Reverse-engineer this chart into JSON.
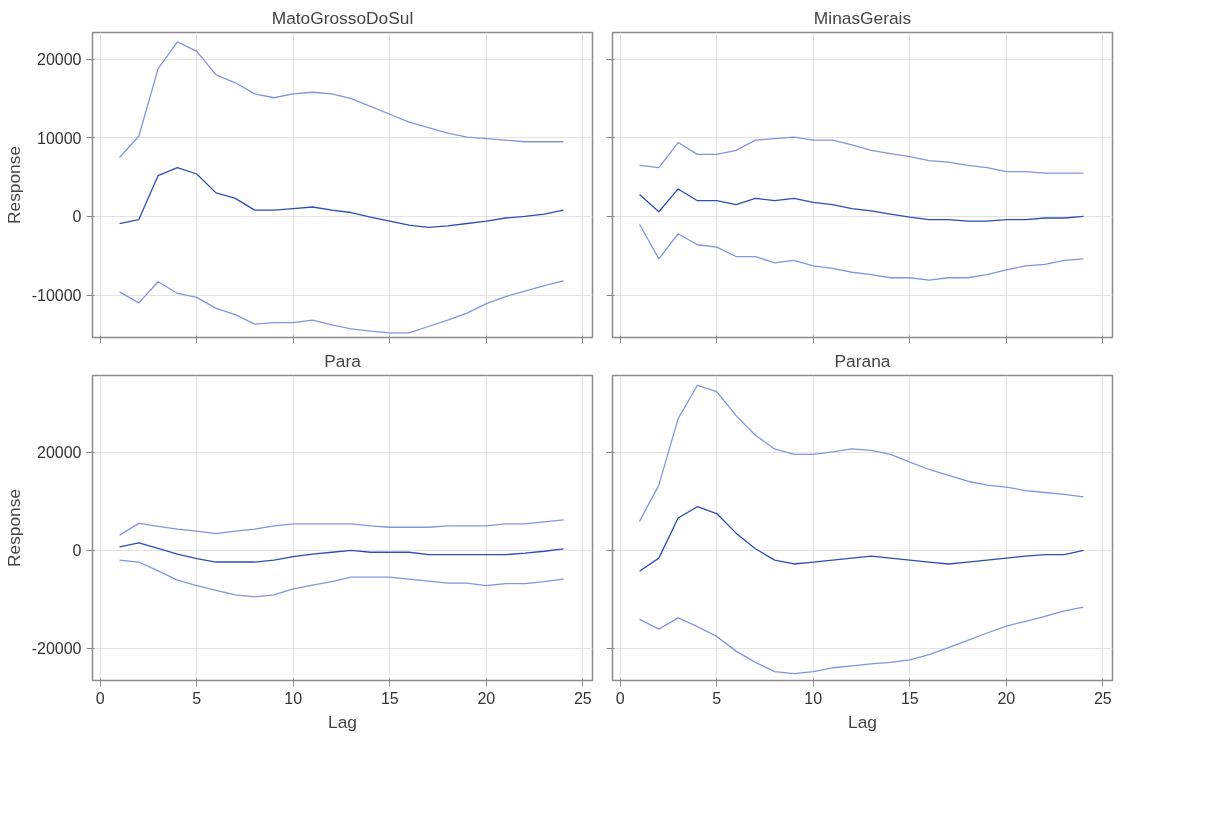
{
  "chart_data": [
    {
      "type": "line",
      "title": "MatoGrossoDoSul",
      "ylabel": "Response",
      "x": [
        1,
        2,
        3,
        4,
        5,
        6,
        7,
        8,
        9,
        10,
        11,
        12,
        13,
        14,
        15,
        16,
        17,
        18,
        19,
        20,
        21,
        22,
        23,
        24
      ],
      "xlim": [
        -0.4,
        25.5
      ],
      "xticks": [
        0,
        5,
        10,
        15,
        20,
        25
      ],
      "ylim": [
        -15400,
        23400
      ],
      "yticks": [
        -10000,
        0,
        10000,
        20000
      ],
      "grid": true,
      "tick_labels": "y",
      "series": [
        {
          "color": "#7f97dc",
          "values": [
            7500,
            10200,
            18800,
            22200,
            21000,
            18000,
            17000,
            15600,
            15100,
            15600,
            15800,
            15600,
            15000,
            14000,
            13000,
            12000,
            11300,
            10600,
            10100,
            9900,
            9700,
            9500,
            9500,
            9500
          ]
        },
        {
          "color": "#2a4fb5",
          "values": [
            -900,
            -400,
            5200,
            6200,
            5400,
            3000,
            2300,
            800,
            800,
            1000,
            1200,
            800,
            500,
            -100,
            -600,
            -1100,
            -1400,
            -1200,
            -900,
            -600,
            -200,
            0,
            300,
            800
          ]
        },
        {
          "color": "#7f97dc",
          "values": [
            -9600,
            -11000,
            -8300,
            -9800,
            -10300,
            -11700,
            -12500,
            -13700,
            -13500,
            -13500,
            -13200,
            -13800,
            -14300,
            -14600,
            -14800,
            -14800,
            -14000,
            -13200,
            -12300,
            -11100,
            -10200,
            -9500,
            -8800,
            -8200
          ]
        }
      ]
    },
    {
      "type": "line",
      "title": "MinasGerais",
      "x": [
        1,
        2,
        3,
        4,
        5,
        6,
        7,
        8,
        9,
        10,
        11,
        12,
        13,
        14,
        15,
        16,
        17,
        18,
        19,
        20,
        21,
        22,
        23,
        24
      ],
      "xlim": [
        -0.4,
        25.5
      ],
      "xticks": [
        0,
        5,
        10,
        15,
        20,
        25
      ],
      "ylim": [
        -15400,
        23400
      ],
      "yticks": [
        -10000,
        0,
        10000,
        20000
      ],
      "grid": true,
      "tick_labels": false,
      "series": [
        {
          "color": "#7f97dc",
          "values": [
            6500,
            6200,
            9400,
            7900,
            7900,
            8400,
            9700,
            9900,
            10100,
            9700,
            9700,
            9100,
            8400,
            8000,
            7600,
            7100,
            6900,
            6500,
            6200,
            5700,
            5700,
            5500,
            5500,
            5500
          ]
        },
        {
          "color": "#2a4fb5",
          "values": [
            2800,
            600,
            3500,
            2000,
            2000,
            1500,
            2300,
            2000,
            2300,
            1800,
            1500,
            1000,
            700,
            300,
            -100,
            -400,
            -400,
            -600,
            -600,
            -400,
            -400,
            -200,
            -200,
            0
          ]
        },
        {
          "color": "#7f97dc",
          "values": [
            -1000,
            -5400,
            -2200,
            -3600,
            -3900,
            -5100,
            -5100,
            -5900,
            -5600,
            -6300,
            -6600,
            -7100,
            -7400,
            -7800,
            -7800,
            -8100,
            -7800,
            -7800,
            -7400,
            -6800,
            -6300,
            -6100,
            -5600,
            -5400
          ]
        }
      ]
    },
    {
      "type": "line",
      "title": "Para",
      "xlabel": "Lag",
      "ylabel": "Response",
      "x": [
        1,
        2,
        3,
        4,
        5,
        6,
        7,
        8,
        9,
        10,
        11,
        12,
        13,
        14,
        15,
        16,
        17,
        18,
        19,
        20,
        21,
        22,
        23,
        24
      ],
      "xlim": [
        -0.4,
        25.5
      ],
      "xticks": [
        0,
        5,
        10,
        15,
        20,
        25
      ],
      "ylim": [
        -26600,
        35700
      ],
      "yticks": [
        -20000,
        0,
        20000
      ],
      "grid": true,
      "series": [
        {
          "color": "#7f97dc",
          "values": [
            3100,
            5500,
            4900,
            4300,
            3900,
            3400,
            3900,
            4300,
            5000,
            5400,
            5400,
            5400,
            5400,
            5000,
            4700,
            4700,
            4700,
            5000,
            5000,
            5000,
            5400,
            5400,
            5800,
            6200
          ]
        },
        {
          "color": "#2a4fb5",
          "values": [
            700,
            1500,
            400,
            -800,
            -1700,
            -2400,
            -2400,
            -2400,
            -2000,
            -1300,
            -800,
            -400,
            0,
            -400,
            -400,
            -400,
            -900,
            -900,
            -900,
            -900,
            -900,
            -600,
            -200,
            300
          ]
        },
        {
          "color": "#7f97dc",
          "values": [
            -2000,
            -2400,
            -4200,
            -6100,
            -7200,
            -8200,
            -9100,
            -9500,
            -9100,
            -7900,
            -7100,
            -6400,
            -5500,
            -5500,
            -5500,
            -5900,
            -6300,
            -6700,
            -6700,
            -7200,
            -6800,
            -6800,
            -6400,
            -5900
          ]
        }
      ]
    },
    {
      "type": "line",
      "title": "Parana",
      "xlabel": "Lag",
      "x": [
        1,
        2,
        3,
        4,
        5,
        6,
        7,
        8,
        9,
        10,
        11,
        12,
        13,
        14,
        15,
        16,
        17,
        18,
        19,
        20,
        21,
        22,
        23,
        24
      ],
      "xlim": [
        -0.4,
        25.5
      ],
      "xticks": [
        0,
        5,
        10,
        15,
        20,
        25
      ],
      "ylim": [
        -26600,
        35700
      ],
      "yticks": [
        -20000,
        0,
        20000
      ],
      "grid": true,
      "tick_labels": "x",
      "series": [
        {
          "color": "#7f97dc",
          "values": [
            5900,
            13300,
            26900,
            33700,
            32400,
            27500,
            23500,
            20700,
            19600,
            19600,
            20100,
            20700,
            20400,
            19600,
            18000,
            16500,
            15300,
            14100,
            13300,
            12900,
            12200,
            11800,
            11400,
            10900
          ]
        },
        {
          "color": "#2a4fb5",
          "values": [
            -4300,
            -1600,
            6600,
            8900,
            7500,
            3500,
            300,
            -2000,
            -2800,
            -2400,
            -2000,
            -1600,
            -1200,
            -1600,
            -2000,
            -2400,
            -2800,
            -2400,
            -2000,
            -1600,
            -1200,
            -900,
            -900,
            0
          ]
        },
        {
          "color": "#7f97dc",
          "values": [
            -14100,
            -16100,
            -13800,
            -15600,
            -17600,
            -20600,
            -22900,
            -24800,
            -25200,
            -24800,
            -24000,
            -23600,
            -23200,
            -22900,
            -22400,
            -21300,
            -19900,
            -18400,
            -16900,
            -15500,
            -14500,
            -13500,
            -12400,
            -11600
          ]
        }
      ]
    }
  ]
}
